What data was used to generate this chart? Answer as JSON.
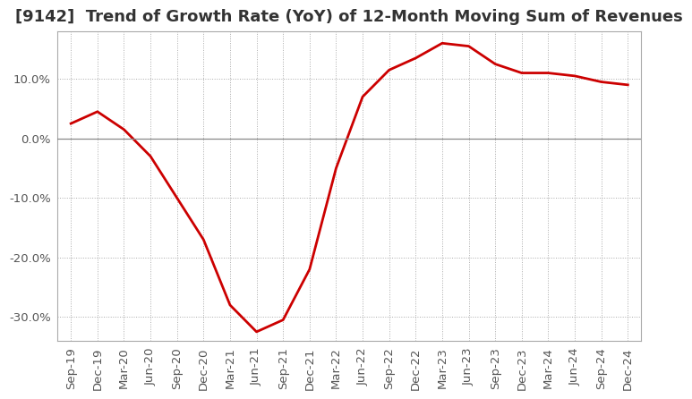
{
  "title": "[9142]  Trend of Growth Rate (YoY) of 12-Month Moving Sum of Revenues",
  "line_color": "#cc0000",
  "background_color": "#ffffff",
  "x_labels": [
    "Sep-19",
    "Dec-19",
    "Mar-20",
    "Jun-20",
    "Sep-20",
    "Dec-20",
    "Mar-21",
    "Jun-21",
    "Sep-21",
    "Dec-21",
    "Mar-22",
    "Jun-22",
    "Sep-22",
    "Dec-22",
    "Mar-23",
    "Jun-23",
    "Sep-23",
    "Dec-23",
    "Mar-24",
    "Jun-24",
    "Sep-24",
    "Dec-24"
  ],
  "y_values": [
    2.5,
    4.5,
    1.5,
    -3.0,
    -10.0,
    -17.0,
    -28.0,
    -32.5,
    -30.5,
    -22.0,
    -5.0,
    7.0,
    11.5,
    13.5,
    16.0,
    15.5,
    12.5,
    11.0,
    11.0,
    10.5,
    9.5,
    9.0
  ],
  "ylim": [
    -34,
    18
  ],
  "yticks": [
    -30,
    -20,
    -10,
    0,
    10
  ],
  "title_fontsize": 13,
  "tick_fontsize": 9.5
}
